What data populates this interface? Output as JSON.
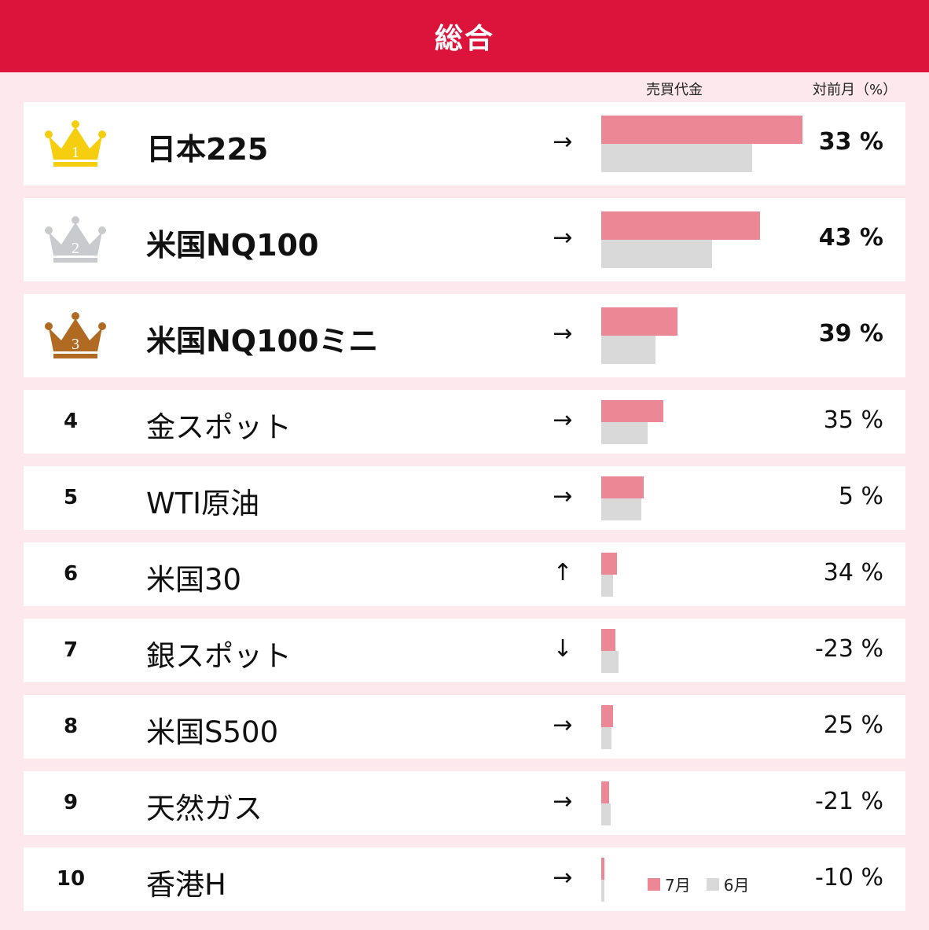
{
  "header": {
    "title": "総合"
  },
  "columns": {
    "trade_value": "売買代金",
    "mom": "対前月（%）"
  },
  "legend": {
    "jul": "7月",
    "jun": "6月"
  },
  "colors": {
    "header": "#dc143c",
    "jul": "#ec8795",
    "jun": "#d9d9d9",
    "gold": "#f5cf0f",
    "silver": "#c8cacd",
    "bronze": "#b06a22"
  },
  "chart_data": {
    "type": "bar",
    "title": "総合",
    "categories": [
      "日本225",
      "米国NQ100",
      "米国NQ100ミニ",
      "金スポット",
      "WTI原油",
      "米国30",
      "銀スポット",
      "米国S500",
      "天然ガス",
      "香港H"
    ],
    "series": [
      {
        "name": "7月",
        "values": [
          100,
          79,
          38,
          31,
          21,
          8,
          7,
          6,
          4,
          1.5
        ]
      },
      {
        "name": "6月",
        "values": [
          75,
          55,
          27,
          23,
          20,
          6,
          8.5,
          5,
          4.5,
          1.5
        ]
      }
    ],
    "mom_pct": [
      33,
      43,
      39,
      35,
      5,
      34,
      -23,
      25,
      -21,
      -10
    ],
    "value_scale": "relative"
  },
  "rows": [
    {
      "rank": "1",
      "name": "日本225",
      "trend": "→",
      "pct": "33 %",
      "medal": "gold"
    },
    {
      "rank": "2",
      "name": "米国NQ100",
      "trend": "→",
      "pct": "43 %",
      "medal": "silver"
    },
    {
      "rank": "3",
      "name": "米国NQ100ミニ",
      "trend": "→",
      "pct": "39 %",
      "medal": "bronze"
    },
    {
      "rank": "4",
      "name": "金スポット",
      "trend": "→",
      "pct": "35 %"
    },
    {
      "rank": "5",
      "name": "WTI原油",
      "trend": "→",
      "pct": "5 %"
    },
    {
      "rank": "6",
      "name": "米国30",
      "trend": "↑",
      "pct": "34 %"
    },
    {
      "rank": "7",
      "name": "銀スポット",
      "trend": "↓",
      "pct": "-23 %"
    },
    {
      "rank": "8",
      "name": "米国S500",
      "trend": "→",
      "pct": "25 %"
    },
    {
      "rank": "9",
      "name": "天然ガス",
      "trend": "→",
      "pct": "-21 %"
    },
    {
      "rank": "10",
      "name": "香港H",
      "trend": "→",
      "pct": "-10 %"
    }
  ]
}
